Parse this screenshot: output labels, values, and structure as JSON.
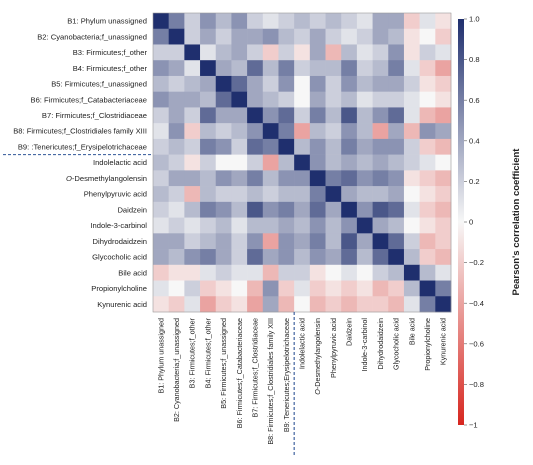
{
  "chart_data": {
    "type": "heatmap",
    "rows": [
      "B1: Phylum unassigned",
      "B2: Cyanobacteria;f_unassigned",
      "B3: Firmicutes;f_other",
      "B4: Firmicutes;f_other",
      "B5: Firmicutes;f_unassigned",
      "B6: Firmicutes;f_Catabacteriaceae",
      "B7: Firmicutes;f_Clostridiaceae",
      "B8: Firmicutes;f_Clostridiales family XIII",
      "B9: :Tenericutes;f_Erysipelotrichaceae",
      "Indolelactic acid",
      "O-Desmethylangolensin",
      "Phenylpyruvic acid",
      "Daidzein",
      "Indole-3-carbinol",
      "Dihydrodaidzein",
      "Glycocholic acid",
      "Bile acid",
      "Propionylcholine",
      "Kynurenic acid"
    ],
    "columns": [
      "B1: Phylum unassigned",
      "B2: Cyanobacteria;f_unassigned",
      "B3: Firmicutes;f_other",
      "B4: Firmicutes;f_other",
      "B5: Firmicutes;f_unassigned",
      "B6: Firmicutes;f_Catabacteriaceae",
      "B7: Firmicutes;f_Clostridiaceae",
      "B8: Firmicutes;f_Clostridiales family XIII",
      "B9: Tenericutes;Erysipelotrichaceae",
      "Indolelactic acid",
      "O-Desmethylangolensin",
      "Phenylpyruvic acid",
      "Daidzein",
      "Indole-3-carbinol",
      "Dihydrodaidzein",
      "Glycocholic acid",
      "Bile acid",
      "Propionylcholine",
      "Kynurenic acid"
    ],
    "values": [
      [
        1.0,
        0.6,
        0.2,
        0.5,
        0.3,
        0.5,
        0.2,
        0.1,
        0.2,
        0.3,
        0.2,
        0.3,
        0.2,
        0.1,
        0.4,
        0.4,
        -0.2,
        0.1,
        -0.1
      ],
      [
        0.6,
        1.0,
        0.2,
        0.4,
        0.2,
        0.4,
        0.4,
        0.5,
        0.3,
        0.2,
        0.4,
        0.2,
        0.1,
        0.2,
        0.4,
        0.3,
        -0.1,
        0.0,
        -0.2
      ],
      [
        0.2,
        0.2,
        1.0,
        0.1,
        0.3,
        0.4,
        0.2,
        -0.2,
        0.2,
        -0.1,
        0.4,
        -0.3,
        0.3,
        0.1,
        0.2,
        0.5,
        -0.1,
        0.2,
        0.1
      ],
      [
        0.5,
        0.4,
        0.1,
        1.0,
        0.4,
        0.3,
        0.7,
        0.3,
        0.6,
        0.2,
        0.3,
        0.3,
        0.6,
        0.2,
        0.3,
        0.6,
        0.1,
        -0.2,
        -0.4
      ],
      [
        0.3,
        0.2,
        0.3,
        0.4,
        1.0,
        0.7,
        0.4,
        0.2,
        0.5,
        0.0,
        0.5,
        0.2,
        0.5,
        0.3,
        0.4,
        0.4,
        0.2,
        -0.1,
        -0.2
      ],
      [
        0.5,
        0.4,
        0.4,
        0.3,
        0.7,
        1.0,
        0.4,
        0.3,
        0.2,
        0.0,
        0.4,
        0.2,
        0.3,
        0.1,
        0.2,
        0.2,
        0.1,
        0.0,
        -0.1
      ],
      [
        0.2,
        0.4,
        0.2,
        0.7,
        0.4,
        0.4,
        1.0,
        0.5,
        0.7,
        0.2,
        0.6,
        0.3,
        0.8,
        0.3,
        0.5,
        0.7,
        0.1,
        -0.3,
        -0.4
      ],
      [
        0.1,
        0.5,
        -0.2,
        0.3,
        0.2,
        0.3,
        0.5,
        1.0,
        0.6,
        -0.4,
        0.3,
        0.2,
        0.5,
        0.3,
        -0.4,
        0.4,
        -0.3,
        0.5,
        0.4
      ],
      [
        0.2,
        0.3,
        0.2,
        0.6,
        0.5,
        0.2,
        0.7,
        0.6,
        1.0,
        0.3,
        0.5,
        0.3,
        0.6,
        0.4,
        0.5,
        0.5,
        0.2,
        -0.2,
        -0.3
      ],
      [
        0.3,
        0.2,
        -0.1,
        0.2,
        0.0,
        0.0,
        0.2,
        -0.4,
        0.3,
        1.0,
        0.5,
        0.3,
        0.4,
        0.3,
        0.4,
        0.3,
        0.2,
        0.1,
        0.0
      ],
      [
        0.2,
        0.4,
        0.4,
        0.3,
        0.5,
        0.4,
        0.6,
        0.3,
        0.5,
        0.5,
        1.0,
        0.6,
        0.7,
        0.5,
        0.6,
        0.5,
        -0.1,
        -0.2,
        -0.3
      ],
      [
        0.3,
        0.2,
        -0.3,
        0.3,
        0.2,
        0.2,
        0.3,
        0.2,
        0.3,
        0.3,
        0.6,
        1.0,
        0.4,
        0.3,
        0.3,
        0.4,
        0.0,
        -0.1,
        -0.2
      ],
      [
        0.2,
        0.1,
        0.3,
        0.6,
        0.5,
        0.3,
        0.8,
        0.5,
        0.6,
        0.4,
        0.7,
        0.4,
        1.0,
        0.5,
        0.8,
        0.7,
        0.1,
        -0.2,
        -0.3
      ],
      [
        0.1,
        0.2,
        0.1,
        0.2,
        0.3,
        0.1,
        0.3,
        0.3,
        0.4,
        0.3,
        0.5,
        0.3,
        0.5,
        1.0,
        0.4,
        0.3,
        0.0,
        -0.1,
        -0.2
      ],
      [
        0.4,
        0.4,
        0.2,
        0.3,
        0.4,
        0.2,
        0.5,
        -0.4,
        0.5,
        0.4,
        0.6,
        0.3,
        0.8,
        0.4,
        1.0,
        0.7,
        0.2,
        -0.3,
        -0.2
      ],
      [
        0.4,
        0.3,
        0.5,
        0.6,
        0.4,
        0.2,
        0.7,
        0.4,
        0.5,
        0.3,
        0.5,
        0.4,
        0.7,
        0.3,
        0.7,
        1.0,
        0.3,
        -0.2,
        -0.3
      ],
      [
        -0.2,
        -0.1,
        -0.1,
        0.1,
        0.2,
        0.1,
        0.1,
        -0.3,
        0.2,
        0.2,
        -0.1,
        0.0,
        0.1,
        0.0,
        0.2,
        0.3,
        1.0,
        0.3,
        0.1
      ],
      [
        0.1,
        0.0,
        0.2,
        -0.2,
        -0.1,
        0.0,
        -0.3,
        0.5,
        -0.2,
        0.1,
        -0.2,
        -0.1,
        -0.2,
        -0.1,
        -0.3,
        -0.2,
        0.3,
        1.0,
        0.6
      ],
      [
        -0.1,
        -0.2,
        0.1,
        -0.4,
        -0.2,
        -0.1,
        -0.4,
        0.4,
        -0.3,
        0.0,
        -0.3,
        -0.2,
        -0.3,
        -0.2,
        -0.2,
        -0.3,
        0.1,
        0.6,
        1.0
      ]
    ],
    "separator_after_index": 8,
    "colorbar": {
      "label": "Pearson's correlation coefficient",
      "range": [
        -1,
        1
      ],
      "ticks": [
        "1.0",
        "0.8",
        "0.6",
        "0.4",
        "0.2",
        "0",
        "−0.2",
        "−0.4",
        "−0.6",
        "−0.8",
        "−1"
      ],
      "colors": {
        "negative": "#d7261f",
        "neutral": "#f7f7f7",
        "positive": "#1f2f6e"
      }
    }
  }
}
